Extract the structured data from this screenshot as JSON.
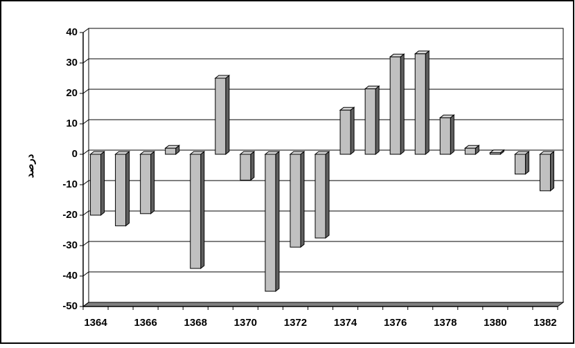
{
  "chart_data": {
    "type": "bar3d",
    "y_label": "درصد",
    "categories": [
      "1364",
      null,
      "1366",
      null,
      "1368",
      null,
      "1370",
      null,
      "1372",
      null,
      "1374",
      null,
      "1376",
      null,
      "1378",
      null,
      "1380",
      null,
      "1382"
    ],
    "values": [
      -20,
      -23.5,
      -19.5,
      2,
      -37.5,
      25,
      -8.5,
      -45,
      -30.5,
      -27.5,
      14.5,
      21.5,
      32,
      33,
      12,
      2,
      0.5,
      -6.5,
      -12
    ],
    "color": "#c0c0c0",
    "ylim": [
      -50,
      40
    ],
    "yticks": [
      -50,
      -40,
      -30,
      -20,
      -10,
      0,
      10,
      20,
      30,
      40
    ],
    "grid": true
  }
}
